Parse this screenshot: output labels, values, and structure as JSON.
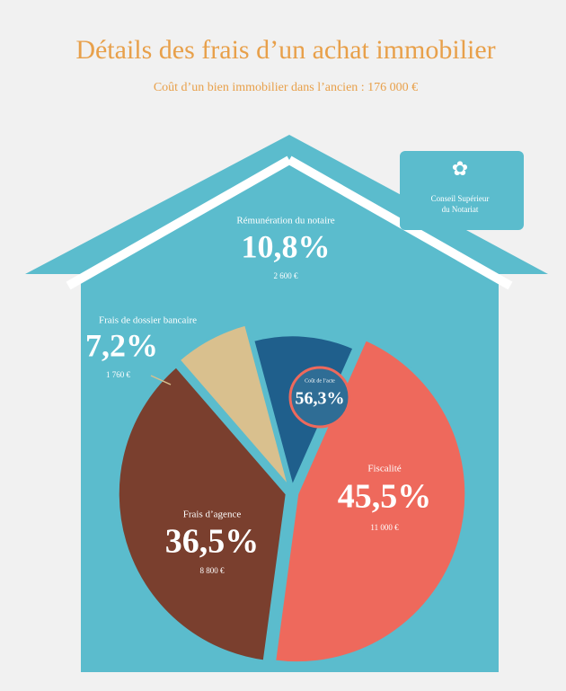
{
  "chart_data": {
    "type": "pie",
    "title": "Détails des frais d’un achat immobilier",
    "subtitle": "Coût d’un bien immobilier dans l’ancien : 176 000 €",
    "logo": [
      "Conseil Supérieur",
      "du Notariat"
    ],
    "categories": [
      "Rémunération du notaire",
      "Fiscalité",
      "Frais d’agence",
      "Frais de dossier bancaire"
    ],
    "values": [
      10.8,
      45.5,
      36.5,
      7.2
    ],
    "value_labels": [
      "10,8%",
      "45,5%",
      "36,5%",
      "7,2%"
    ],
    "amounts": [
      2600,
      11000,
      8800,
      1760
    ],
    "amount_labels": [
      "2 600 €",
      "11 000 €",
      "8 800 €",
      "1 760 €"
    ],
    "colors": [
      "#1f5f8c",
      "#ee695c",
      "#7a3f2e",
      "#d9c08e"
    ],
    "center": {
      "label": "Coût de l’acte",
      "value_text": "56,3%"
    }
  }
}
